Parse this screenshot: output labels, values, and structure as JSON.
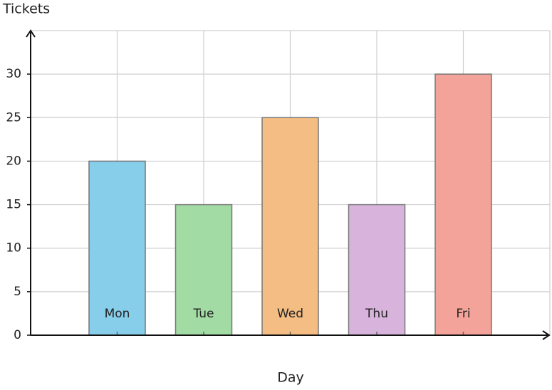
{
  "chart_data": {
    "type": "bar",
    "y_label": "Tickets",
    "x_label": "Day",
    "categories": [
      "Mon",
      "Tue",
      "Wed",
      "Thu",
      "Fri"
    ],
    "values": [
      20,
      15,
      25,
      15,
      30
    ],
    "colors": [
      "#87ceeb",
      "#a2dba3",
      "#f3bd83",
      "#d8b4dc",
      "#f4a39a"
    ],
    "ylim": [
      0,
      35
    ],
    "yticks": [
      0,
      5,
      10,
      15,
      20,
      25,
      30
    ],
    "grid": true
  }
}
